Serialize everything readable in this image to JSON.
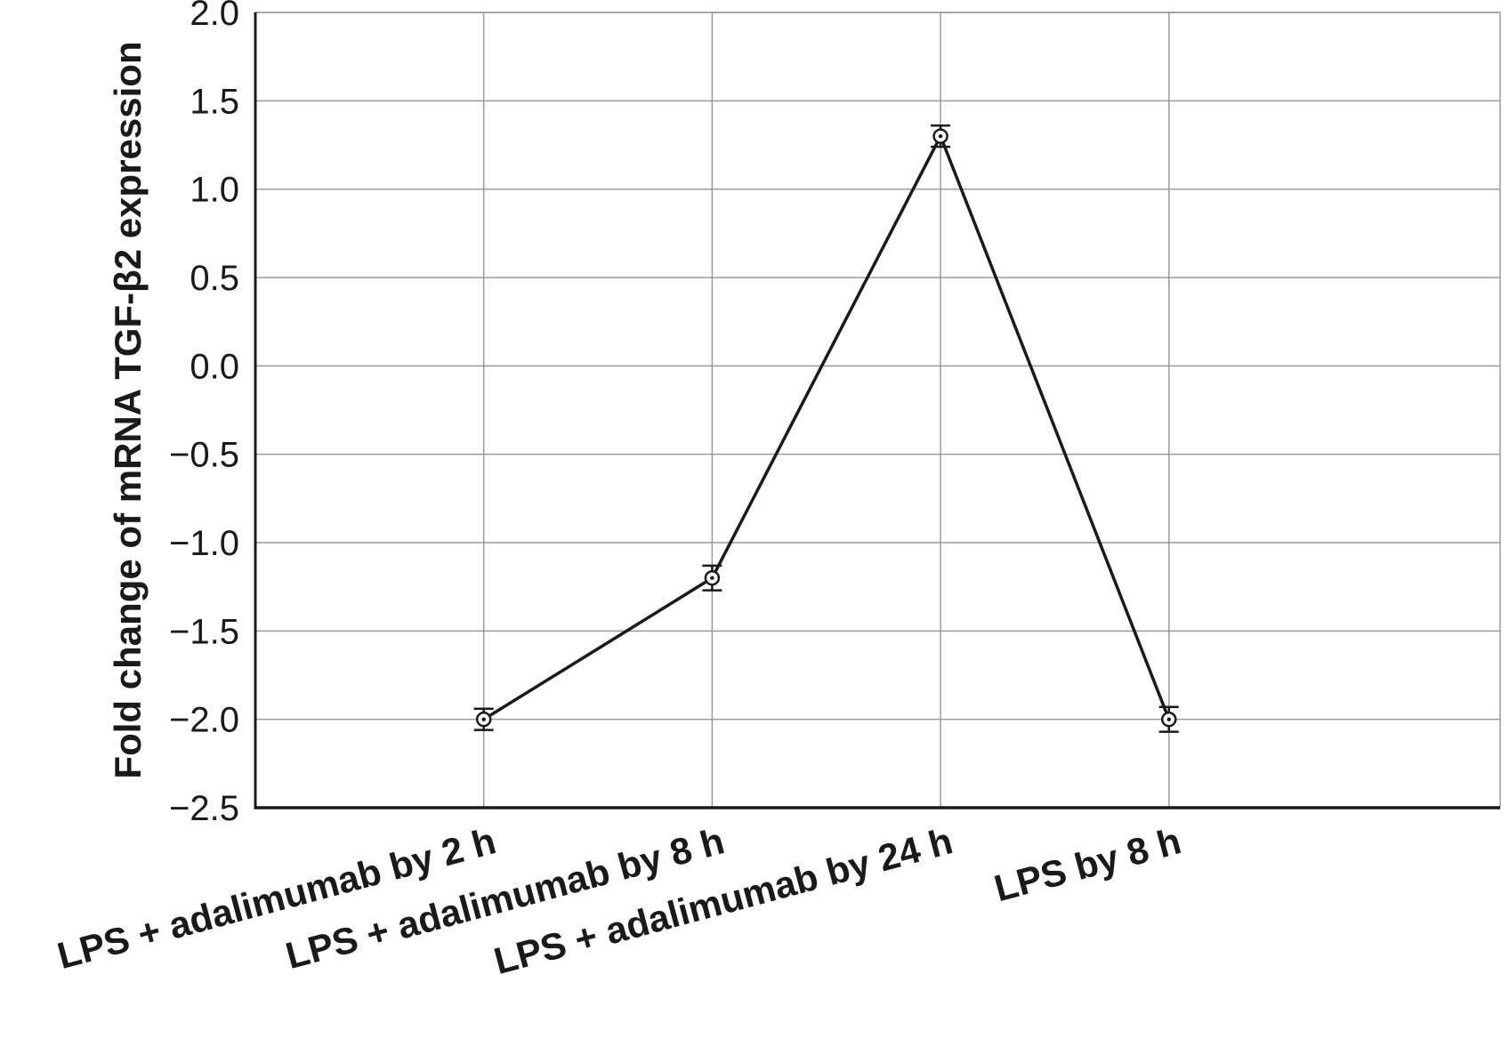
{
  "chart_data": {
    "type": "line",
    "title": "",
    "xlabel": "",
    "ylabel": "Fold change of mRNA TGF-β2 expression",
    "categories": [
      "LPS + adalimumab by 2 h",
      "LPS + adalimumab by 8 h",
      "LPS + adalimumab by 24 h",
      "LPS by 8 h"
    ],
    "series": [
      {
        "name": "Fold change of mRNA TGF-β2 expression",
        "values": [
          -2.0,
          -1.2,
          1.3,
          -2.0
        ],
        "errors": [
          0.06,
          0.07,
          0.06,
          0.07
        ]
      }
    ],
    "ylim": [
      -2.5,
      2.0
    ],
    "yticks": [
      2.0,
      1.5,
      1.0,
      0.5,
      0.0,
      -0.5,
      -1.0,
      -1.5,
      -2.0,
      -2.5
    ],
    "ytick_labels": [
      "2.0",
      "1.5",
      "1.0",
      "0.5",
      "0.0",
      "−0.5",
      "−1.0",
      "−1.5",
      "−2.0",
      "−2.5"
    ],
    "grid": true,
    "legend_position": "none",
    "marker": "open-circle",
    "colors": {
      "line": "#1a1a1a",
      "grid": "#9a9a9a",
      "background": "#ffffff",
      "marker_fill": "#ffffff"
    }
  }
}
